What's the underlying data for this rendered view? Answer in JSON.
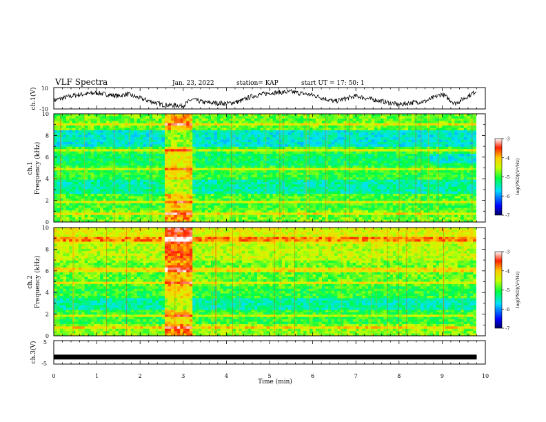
{
  "header": {
    "title": "VLF Spectra",
    "date": "Jan. 23, 2022",
    "station": "station= KAP",
    "start": "start  UT =  17: 50: 1"
  },
  "chart_data": [
    {
      "type": "line",
      "name": "ch1-waveform",
      "ylabel": "ch.1(V)",
      "ylim": [
        -10,
        10
      ],
      "ytick_labels": [
        "10",
        "-10"
      ],
      "xlim": [
        0,
        10
      ],
      "x_unit": "min",
      "x": [
        0,
        0.5,
        1,
        1.5,
        1.7,
        2,
        2.5,
        3,
        3.2,
        3.5,
        4,
        4.3,
        4.6,
        5,
        5.5,
        6,
        6.5,
        7,
        7.5,
        8,
        8.3,
        8.6,
        9,
        9.3,
        9.6,
        9.8
      ],
      "values": [
        -2,
        3,
        5,
        2,
        4,
        0,
        -6,
        -7,
        -1,
        -4,
        -5,
        -3,
        2,
        5,
        6,
        3,
        -3,
        2,
        -2,
        -6,
        -4,
        -3,
        4,
        -5,
        2,
        7
      ]
    },
    {
      "type": "heatmap",
      "name": "ch1-spectrogram",
      "ylabel": "ch.1\nFrequency (kHz)",
      "ylim": [
        0,
        10
      ],
      "ytick_labels": [
        "0",
        "2",
        "4",
        "6",
        "8",
        "10"
      ],
      "xlim": [
        0,
        10
      ],
      "colorbar": {
        "label": "log(PSD)(V²/Hz)",
        "range": [
          -7,
          -3
        ],
        "tick_labels": [
          "-3",
          "-4",
          "-5",
          "-6",
          "-7"
        ]
      },
      "noted_features": {
        "broadband_burst_min": [
          2.6,
          3.2
        ],
        "enhanced_line_khz": 6.6,
        "low_power_band_khz": [
          7.0,
          7.8
        ]
      }
    },
    {
      "type": "heatmap",
      "name": "ch2-spectrogram",
      "ylabel": "ch.2\nFrequency (kHz)",
      "ylim": [
        0,
        10
      ],
      "ytick_labels": [
        "0",
        "2",
        "4",
        "6",
        "8",
        "10"
      ],
      "xlim": [
        0,
        10
      ],
      "colorbar": {
        "label": "log(PSD)(V²/Hz)",
        "range": [
          -7,
          -3
        ],
        "tick_labels": [
          "-3",
          "-4",
          "-5",
          "-6",
          "-7"
        ]
      },
      "noted_features": {
        "broadband_burst_min": [
          2.6,
          3.2
        ],
        "high_power_band_khz": [
          5.2,
          10
        ]
      }
    },
    {
      "type": "line",
      "name": "ch3-waveform",
      "ylabel": "ch.3(V)",
      "ylim": [
        -5,
        5
      ],
      "ytick_labels": [
        "5",
        "-5"
      ],
      "xlim": [
        0,
        10
      ],
      "x": [
        0,
        9.8
      ],
      "values": [
        -2,
        -2
      ]
    }
  ],
  "xaxis": {
    "label": "Time  (min)",
    "tick_labels": [
      "0",
      "1",
      "2",
      "3",
      "4",
      "5",
      "6",
      "7",
      "8",
      "9",
      "10"
    ]
  }
}
